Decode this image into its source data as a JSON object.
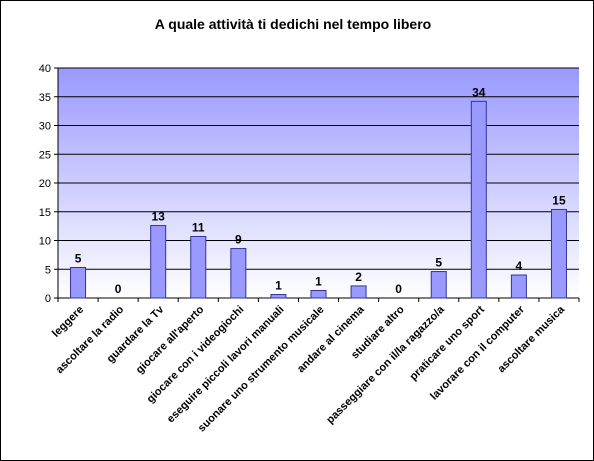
{
  "chart_data": {
    "type": "bar",
    "title": "A quale attività ti dedichi nel tempo libero",
    "categories": [
      "leggere",
      "ascoltare la radio",
      "guardare la Tv",
      "giocare all'aperto",
      "giocare con i videogiochi",
      "eseguire piccoli lavori manuali",
      "suonare uno strumento musicale",
      "andare al cinema",
      "studiare altro",
      "passeggiare con il/la ragazzo/a",
      "praticare uno sport",
      "lavorare con il computer",
      "ascoltare musica"
    ],
    "values": [
      5.3,
      0,
      12.6,
      10.7,
      8.6,
      0.6,
      1.3,
      2.1,
      0,
      4.6,
      34.2,
      4.0,
      15.4
    ],
    "data_labels": [
      "5",
      "0",
      "13",
      "11",
      "9",
      "1",
      "1",
      "2",
      "0",
      "5",
      "34",
      "4",
      "15"
    ],
    "ylim": [
      0,
      40
    ],
    "yticks": [
      0,
      5,
      10,
      15,
      20,
      25,
      30,
      35,
      40
    ],
    "grid": true,
    "legend": "none",
    "colors": {
      "bar_fill": "#9999ff",
      "bar_stroke": "#333399",
      "plot_bg_top": "#9999ff",
      "plot_bg_bottom": "#ffffff",
      "gridline": "#000000"
    }
  }
}
